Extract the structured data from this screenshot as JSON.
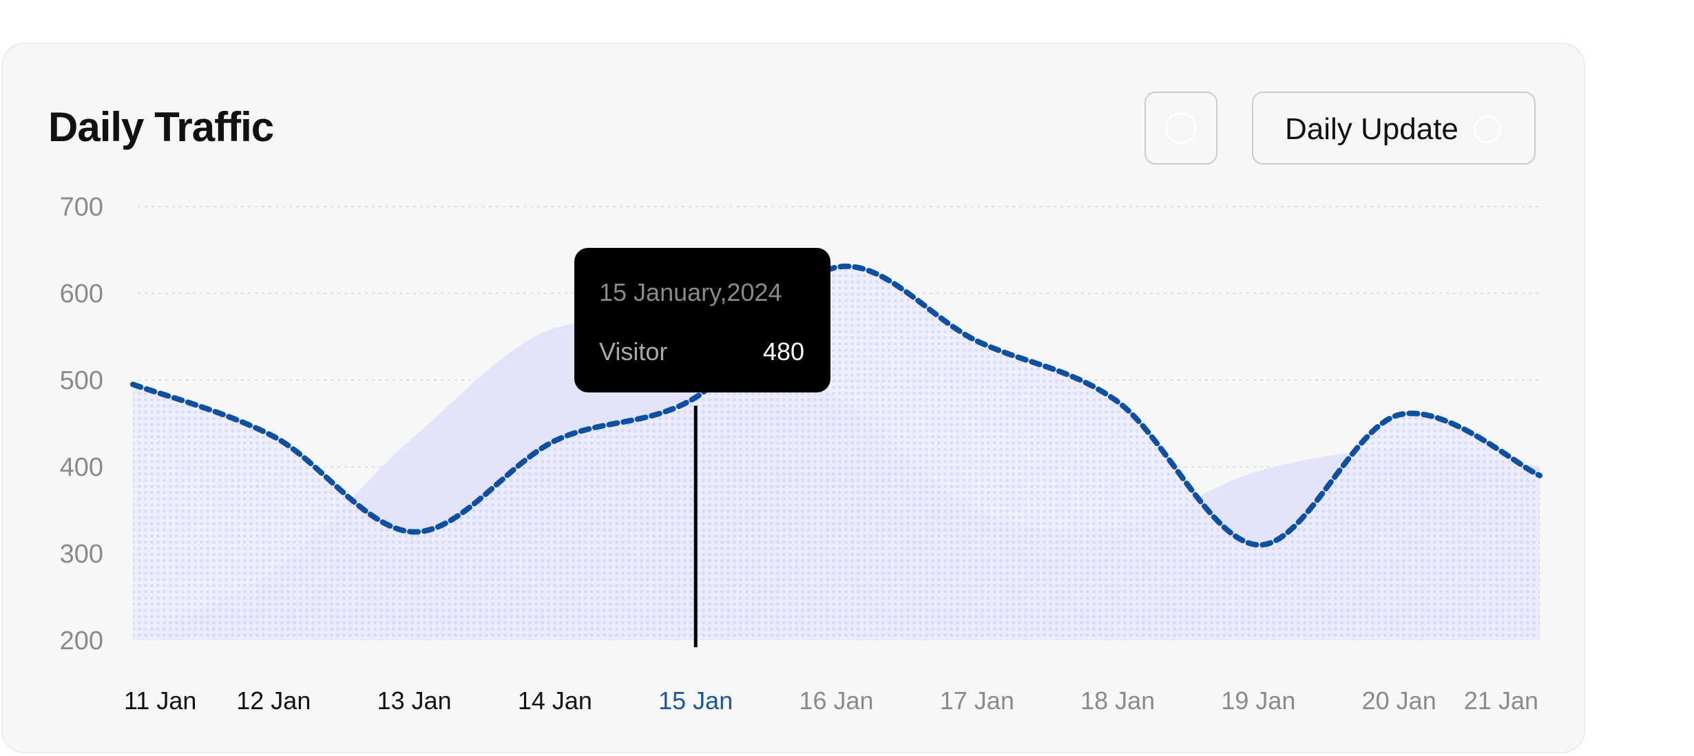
{
  "header": {
    "title": "Daily Traffic",
    "dropdown_label": "Daily Update",
    "icon_button": "circle-icon",
    "dropdown_icon": "circle-icon"
  },
  "colors": {
    "line": "#0d4fa0",
    "area": "#d6d6fb",
    "back_area": "#e3e3fb",
    "active_tick": "#1a55a6",
    "past_tick": "#111111",
    "future_tick": "#8a8a8a",
    "tooltip_bg": "#000000"
  },
  "chart_data": {
    "type": "line",
    "title": "Daily Traffic",
    "xlabel": "",
    "ylabel": "",
    "ylim": [
      200,
      700
    ],
    "yticks": [
      "700",
      "600",
      "500",
      "400",
      "300",
      "200"
    ],
    "grid": true,
    "categories": [
      "11 Jan",
      "12 Jan",
      "13 Jan",
      "14 Jan",
      "15 Jan",
      "16 Jan",
      "17 Jan",
      "18 Jan",
      "19 Jan",
      "20 Jan",
      "21 Jan"
    ],
    "active_index": 4,
    "series": [
      {
        "style": "dashed-line-with-dotted-area",
        "values": [
          495,
          435,
          325,
          430,
          480,
          630,
          545,
          475,
          310,
          460,
          390
        ]
      },
      {
        "style": "background-area",
        "values": [
          205,
          280,
          435,
          560,
          540,
          480,
          350,
          330,
          395,
          420,
          400
        ]
      }
    ],
    "tooltip": {
      "date": "15 January,2024",
      "label": "Visitor",
      "value": "480"
    }
  }
}
